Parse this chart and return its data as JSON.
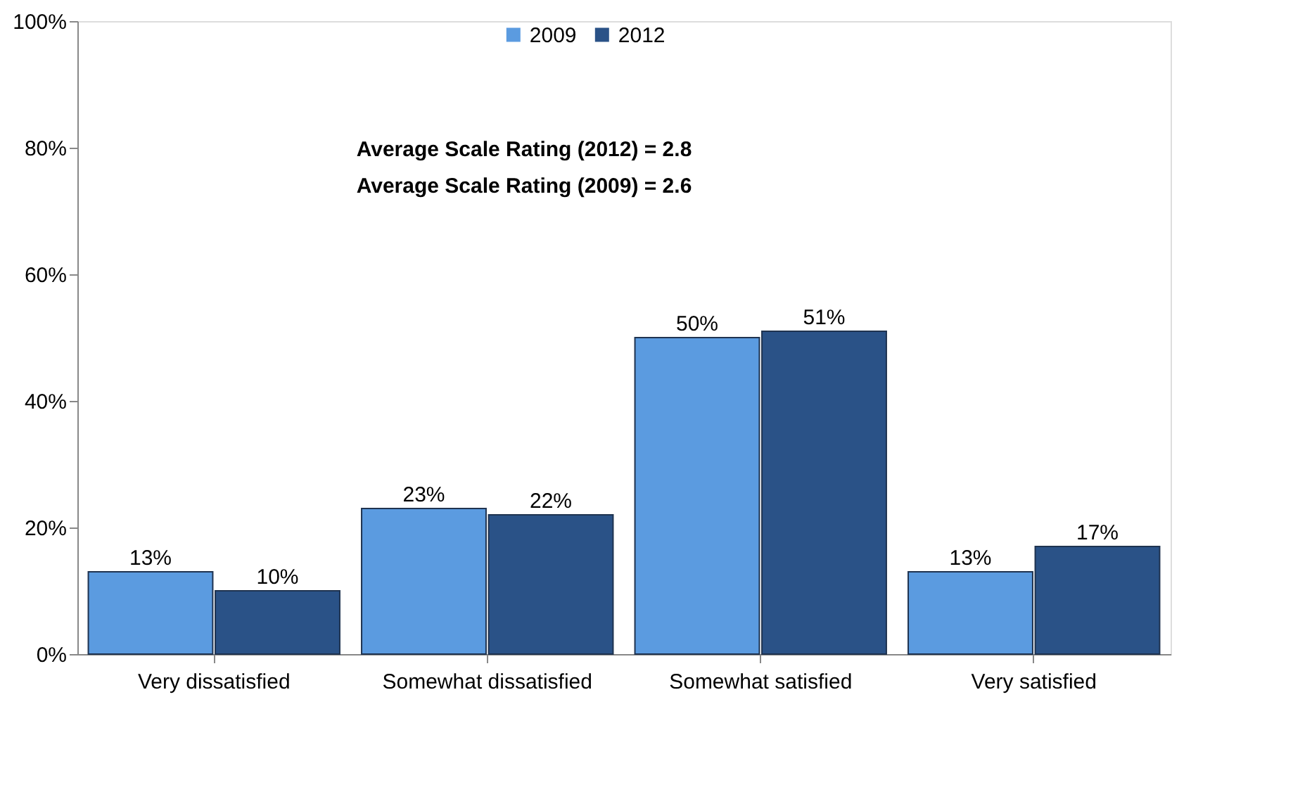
{
  "chart_data": {
    "type": "bar",
    "categories": [
      "Very dissatisfied",
      "Somewhat dissatisfied",
      "Somewhat satisfied",
      "Very satisfied"
    ],
    "series": [
      {
        "name": "2009",
        "color": "#5b9be0",
        "values": [
          13,
          23,
          50,
          13
        ],
        "value_labels": [
          "13%",
          "23%",
          "50%",
          "13%"
        ]
      },
      {
        "name": "2012",
        "color": "#2a5287",
        "values": [
          10,
          22,
          51,
          17
        ],
        "value_labels": [
          "10%",
          "22%",
          "51%",
          "17%"
        ]
      }
    ],
    "ylim": [
      0,
      100
    ],
    "yticks": [
      {
        "value": 0,
        "label": "0%"
      },
      {
        "value": 20,
        "label": "20%"
      },
      {
        "value": 40,
        "label": "40%"
      },
      {
        "value": 60,
        "label": "60%"
      },
      {
        "value": 80,
        "label": "80%"
      },
      {
        "value": 100,
        "label": "100%"
      }
    ],
    "annotations": [
      "Average Scale Rating (2012) = 2.8",
      "Average Scale Rating (2009) = 2.6"
    ],
    "legend": "top",
    "grid": false
  }
}
